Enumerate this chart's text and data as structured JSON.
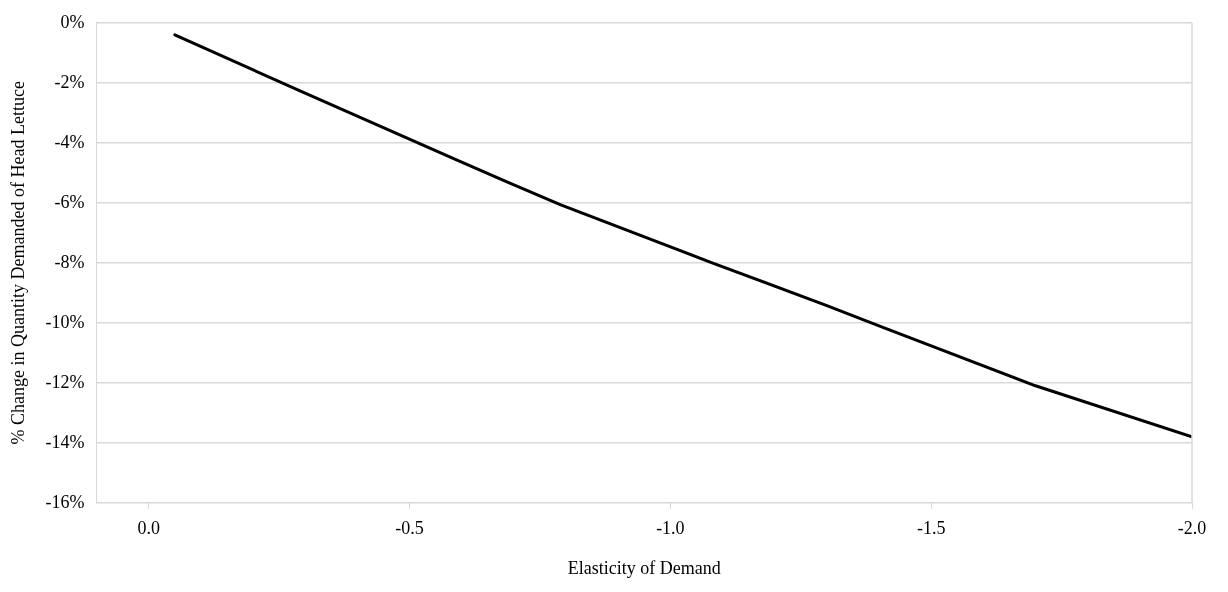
{
  "chart_data": {
    "type": "line",
    "xlabel": "Elasticity of Demand",
    "ylabel": "% Change in Quantity Demanded of Head Lettuce",
    "x": [
      -0.05,
      -0.29,
      -0.59,
      -0.69,
      -0.79,
      -1.08,
      -1.3,
      -1.4,
      -1.7,
      -2.0
    ],
    "series": [
      {
        "color": "#000000",
        "values": [
          -0.4,
          -2.27,
          -4.57,
          -5.33,
          -6.07,
          -8.0,
          -9.43,
          -10.1,
          -12.1,
          -13.8
        ]
      }
    ],
    "xlim": [
      0.1,
      -2.0
    ],
    "xticks": [
      {
        "value": 0,
        "label": "0.0"
      },
      {
        "value": -0.5,
        "label": "-0.5"
      },
      {
        "value": -1,
        "label": "-1.0"
      },
      {
        "value": -1.5,
        "label": "-1.5"
      },
      {
        "value": -2,
        "label": "-2.0"
      }
    ],
    "ylim": [
      -16,
      0
    ],
    "yticks": [
      {
        "value": -16,
        "label": "-16%"
      },
      {
        "value": -14,
        "label": "-14%"
      },
      {
        "value": -12,
        "label": "-12%"
      },
      {
        "value": -10,
        "label": "-10%"
      },
      {
        "value": -8,
        "label": "-8%"
      },
      {
        "value": -6,
        "label": "-6%"
      },
      {
        "value": -4,
        "label": "-4%"
      },
      {
        "value": -2,
        "label": "-2%"
      },
      {
        "value": 0,
        "label": "0%"
      }
    ],
    "grid": "y",
    "legend": false,
    "marker": "none",
    "line_style": "solid"
  }
}
